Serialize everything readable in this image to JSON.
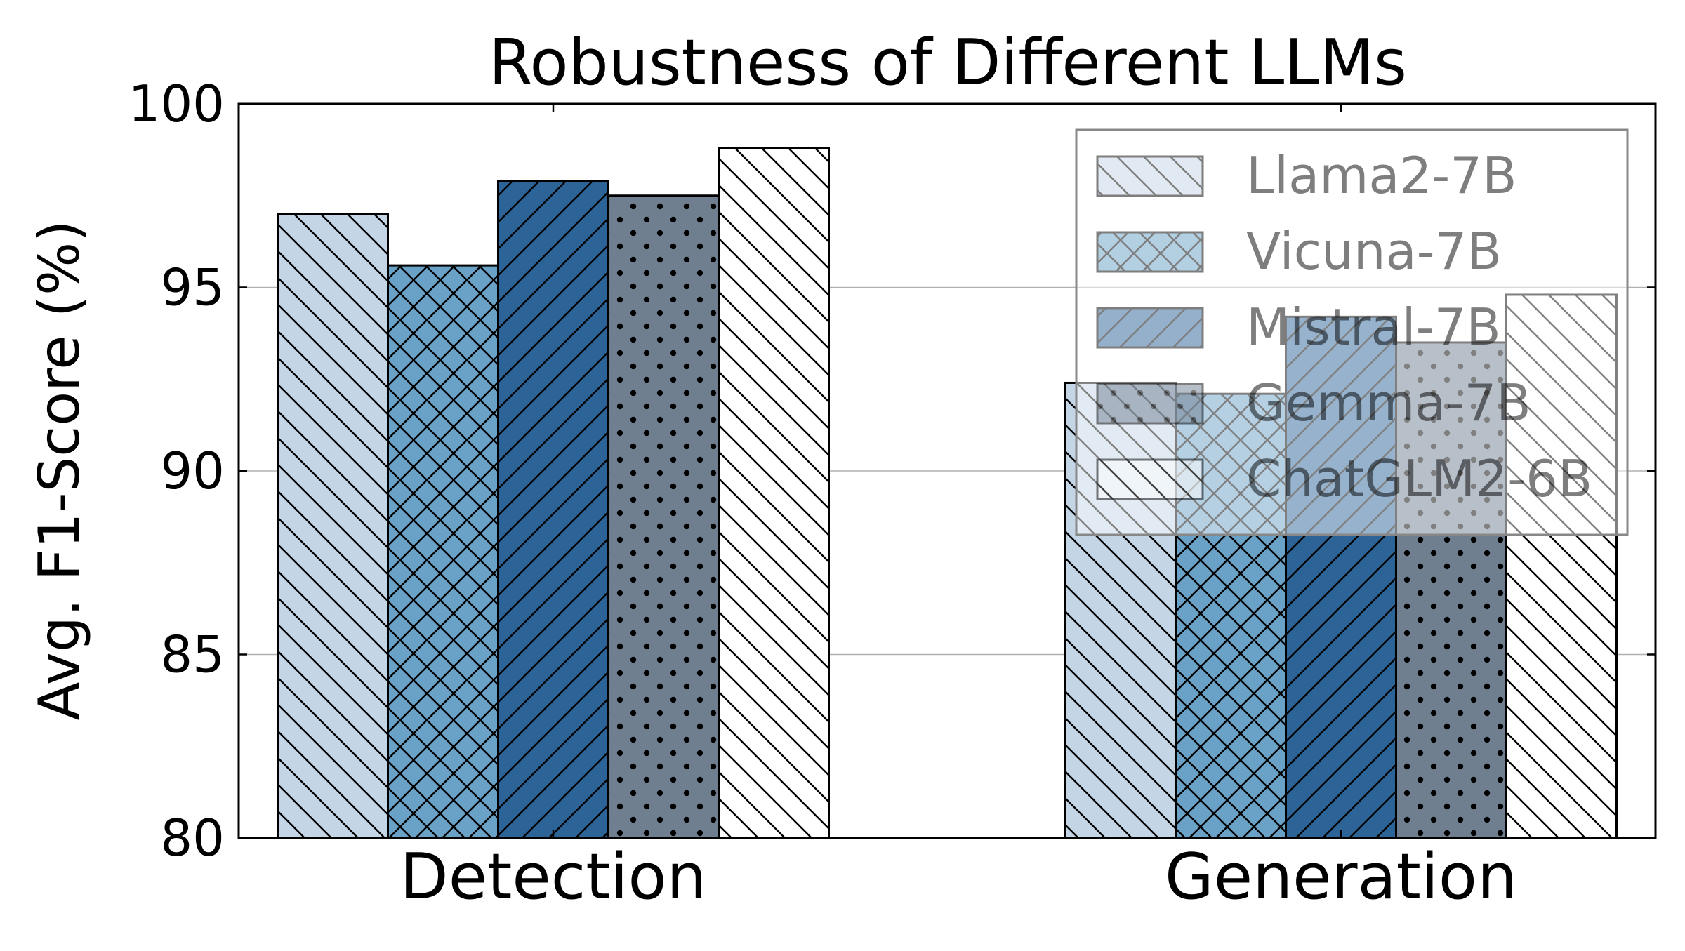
{
  "chart_data": {
    "type": "bar",
    "title": "Robustness of Different LLMs",
    "xlabel": "",
    "ylabel": "Avg. F1-Score (%)",
    "ylim": [
      80,
      100
    ],
    "yticks": [
      80,
      85,
      90,
      95,
      100
    ],
    "grid": true,
    "categories": [
      "Detection",
      "Generation"
    ],
    "series": [
      {
        "name": "Llama2-7B",
        "values": [
          97.0,
          92.4
        ],
        "color": "#c4d6e6",
        "hatch": "backslash"
      },
      {
        "name": "Vicuna-7B",
        "values": [
          95.6,
          92.1
        ],
        "color": "#6aa1c6",
        "hatch": "cross"
      },
      {
        "name": "Mistral-7B",
        "values": [
          97.9,
          94.2
        ],
        "color": "#2d6498",
        "hatch": "slash"
      },
      {
        "name": "Gemma-7B",
        "values": [
          97.5,
          93.5
        ],
        "color": "#6f7f90",
        "hatch": "dots"
      },
      {
        "name": "ChatGLM2-6B",
        "values": [
          98.8,
          94.8
        ],
        "color": "#ffffff",
        "hatch": "backslash"
      }
    ],
    "legend_position": "top-right"
  }
}
